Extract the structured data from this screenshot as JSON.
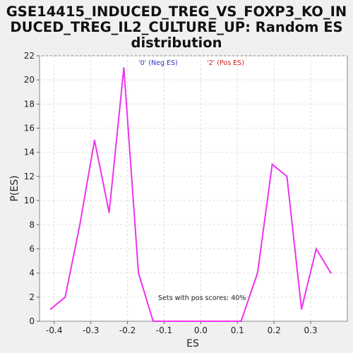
{
  "chart_data": {
    "type": "line",
    "title_lines": [
      "GSE14415_INDUCED_TREG_VS_FOXP3_KO_IN",
      "DUCED_TREG_IL2_CULTURE_UP: Random ES",
      "distribution"
    ],
    "xlabel": "ES",
    "ylabel": "P(ES)",
    "xlim": [
      -0.44,
      0.4
    ],
    "ylim": [
      0,
      22
    ],
    "x_ticks": [
      -0.4,
      -0.3,
      -0.2,
      -0.1,
      0.0,
      0.1,
      0.2,
      0.3
    ],
    "x_tick_labels": [
      "-0.4",
      "-0.3",
      "-0.2",
      "-0.1",
      "0.0",
      "0.1",
      "0.2",
      "0.3"
    ],
    "y_ticks": [
      0,
      2,
      4,
      6,
      8,
      10,
      12,
      14,
      16,
      18,
      20,
      22
    ],
    "y_tick_labels": [
      "0",
      "2",
      "4",
      "6",
      "8",
      "10",
      "12",
      "14",
      "16",
      "18",
      "20",
      "22"
    ],
    "grid": true,
    "legend": [
      {
        "label": "'0' (Neg ES)",
        "color": "#3333cc"
      },
      {
        "label": "'2' (Pos ES)",
        "color": "#cc2222"
      }
    ],
    "annotation": "Sets with pos scores: 40%",
    "series": [
      {
        "color": "#ee33ee",
        "x": [
          -0.41,
          -0.37,
          -0.33,
          -0.29,
          -0.25,
          -0.21,
          -0.17,
          -0.13,
          -0.09,
          -0.05,
          -0.01,
          0.03,
          0.07,
          0.11,
          0.155,
          0.195,
          0.235,
          0.275,
          0.315,
          0.355
        ],
        "y": [
          1,
          2,
          8,
          15,
          9,
          21,
          4,
          0,
          0,
          0,
          0,
          0,
          0,
          0,
          4,
          13,
          12,
          1,
          6,
          4
        ]
      }
    ]
  }
}
